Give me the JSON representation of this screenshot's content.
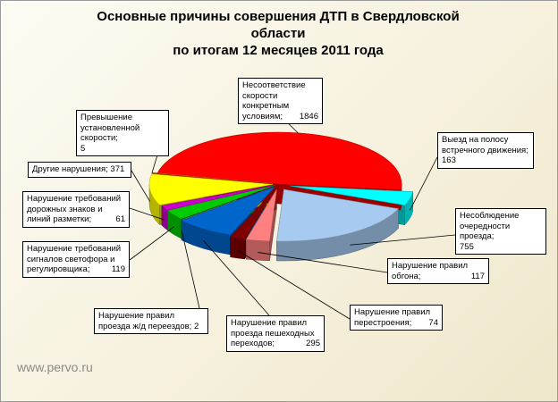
{
  "title": {
    "line1": "Основные причины совершения ДТП в Свердловской",
    "line2": "области",
    "line3": "по итогам 12 месяцев 2011 года"
  },
  "watermark": "www.pervo.ru",
  "chart_data": {
    "type": "pie",
    "title": "Основные причины совершения ДТП в Свердловской области по итогам 12 месяцев 2011 года",
    "slices": [
      {
        "name": "Несоответствие скорости конкретным условиям",
        "value": 1846,
        "color": "#ff0000"
      },
      {
        "name": "Выезд на полосу встречного движения",
        "value": 163,
        "color": "#00ffff"
      },
      {
        "name": "Несоблюдение очередности проезда",
        "value": 755,
        "color": "#a6caf0"
      },
      {
        "name": "Нарушение правил обгона",
        "value": 117,
        "color": "#ff8080"
      },
      {
        "name": "Нарушение правил перестроения",
        "value": 74,
        "color": "#800000"
      },
      {
        "name": "Нарушение правил проезда пешеходных переходов",
        "value": 295,
        "color": "#0066cc"
      },
      {
        "name": "Нарушение правил проезда ж/д переездов",
        "value": 2,
        "color": "#000080"
      },
      {
        "name": "Нарушение требований сигналов светофора и регулировщика",
        "value": 119,
        "color": "#00cc00"
      },
      {
        "name": "Нарушение требований дорожных знаков и линий разметки",
        "value": 61,
        "color": "#cc00cc"
      },
      {
        "name": "Другие нарушения",
        "value": 371,
        "color": "#ffff00"
      },
      {
        "name": "Превышение установленной скорости",
        "value": 5,
        "color": "#ff6600"
      }
    ]
  },
  "labels": [
    {
      "id": "l0",
      "name": "Несоответствие скорости конкретным условиям",
      "sep": ";",
      "value": "1846"
    },
    {
      "id": "l1",
      "name": "Выезд на полосу встречного движения",
      "sep": ";",
      "value": "163"
    },
    {
      "id": "l2",
      "name": "Несоблюдение очередности проезда",
      "sep": ";",
      "value": "755"
    },
    {
      "id": "l3",
      "name": "Нарушение правил обгона",
      "sep": ";",
      "value": "117"
    },
    {
      "id": "l4",
      "name": "Нарушение правил перестроения",
      "sep": ";",
      "value": "74"
    },
    {
      "id": "l5",
      "name": "Нарушение правил проезда пешеходных переходов",
      "sep": ";",
      "value": "295"
    },
    {
      "id": "l6",
      "name": "Нарушение правил проезда ж/д переездов",
      "sep": ";",
      "value": "2"
    },
    {
      "id": "l7",
      "name": "Нарушение требований сигналов светофора и регулировщика",
      "sep": ";",
      "value": "119"
    },
    {
      "id": "l8",
      "name": "Нарушение требований дорожных знаков и линий разметки",
      "sep": ";",
      "value": "61"
    },
    {
      "id": "l9",
      "name": "Другие нарушения",
      "sep": ";",
      "value": "371"
    },
    {
      "id": "l10",
      "name": "Превышение установленной скорости",
      "sep": ";",
      "value": "5"
    }
  ]
}
